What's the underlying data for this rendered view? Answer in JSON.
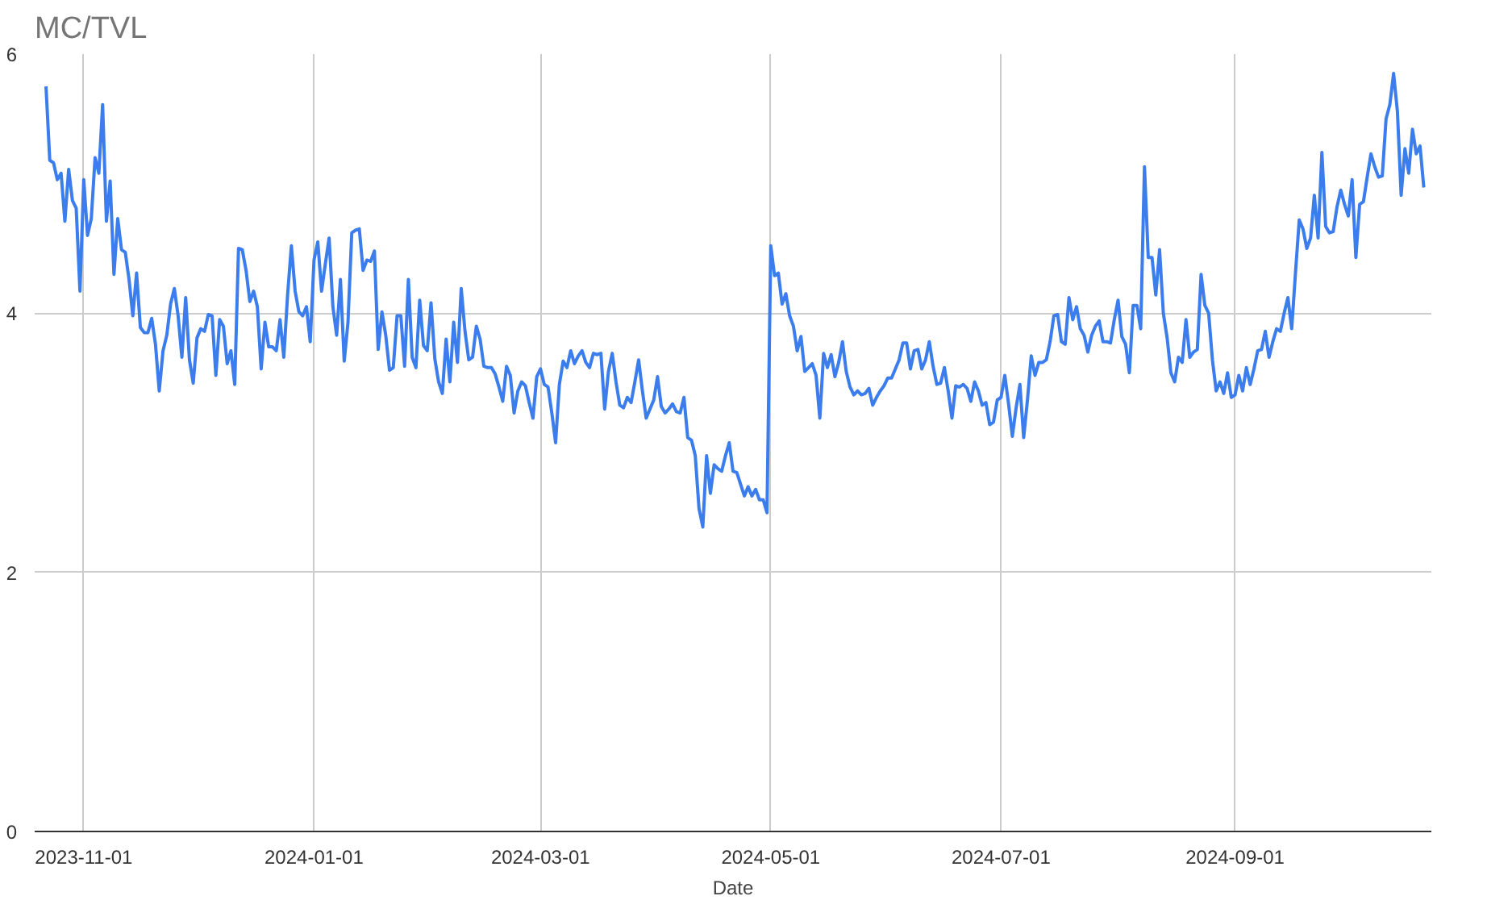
{
  "chart_data": {
    "type": "line",
    "title": "MC/TVL",
    "xlabel": "Date",
    "xlim": [
      "2023-10-19",
      "2024-10-23"
    ],
    "ylim": [
      0,
      6
    ],
    "xticks": [
      "2023-11-01",
      "2024-01-01",
      "2024-03-01",
      "2024-05-01",
      "2024-07-01",
      "2024-09-01"
    ],
    "yticks": [
      0,
      2,
      4,
      6
    ],
    "grid": true,
    "x": [
      "2023-10-22",
      "2023-10-23",
      "2023-10-24",
      "2023-10-25",
      "2023-10-26",
      "2023-10-27",
      "2023-10-28",
      "2023-10-29",
      "2023-10-30",
      "2023-10-31",
      "2023-11-01",
      "2023-11-02",
      "2023-11-03",
      "2023-11-04",
      "2023-11-05",
      "2023-11-06",
      "2023-11-07",
      "2023-11-08",
      "2023-11-09",
      "2023-11-10",
      "2023-11-11",
      "2023-11-12",
      "2023-11-13",
      "2023-11-14",
      "2023-11-15",
      "2023-11-16",
      "2023-11-17",
      "2023-11-18",
      "2023-11-19",
      "2023-11-20",
      "2023-11-21",
      "2023-11-22",
      "2023-11-23",
      "2023-11-24",
      "2023-11-25",
      "2023-11-26",
      "2023-11-27",
      "2023-11-28",
      "2023-11-29",
      "2023-11-30",
      "2023-12-01",
      "2023-12-02",
      "2023-12-03",
      "2023-12-04",
      "2023-12-05",
      "2023-12-06",
      "2023-12-07",
      "2023-12-08",
      "2023-12-09",
      "2023-12-10",
      "2023-12-11",
      "2023-12-12",
      "2023-12-13",
      "2023-12-14",
      "2023-12-15",
      "2023-12-16",
      "2023-12-17",
      "2023-12-18",
      "2023-12-19",
      "2023-12-20",
      "2023-12-21",
      "2023-12-22",
      "2023-12-23",
      "2023-12-24",
      "2023-12-25",
      "2023-12-26",
      "2023-12-27",
      "2023-12-28",
      "2023-12-29",
      "2023-12-30",
      "2023-12-31",
      "2024-01-01",
      "2024-01-02",
      "2024-01-03",
      "2024-01-04",
      "2024-01-05",
      "2024-01-06",
      "2024-01-07",
      "2024-01-08",
      "2024-01-09",
      "2024-01-10",
      "2024-01-11",
      "2024-01-12",
      "2024-01-13",
      "2024-01-14",
      "2024-01-15",
      "2024-01-16",
      "2024-01-17",
      "2024-01-18",
      "2024-01-19",
      "2024-01-20",
      "2024-01-21",
      "2024-01-22",
      "2024-01-23",
      "2024-01-24",
      "2024-01-25",
      "2024-01-26",
      "2024-01-27",
      "2024-01-28",
      "2024-01-29",
      "2024-01-30",
      "2024-01-31",
      "2024-02-01",
      "2024-02-02",
      "2024-02-03",
      "2024-02-04",
      "2024-02-05",
      "2024-02-06",
      "2024-02-07",
      "2024-02-08",
      "2024-02-09",
      "2024-02-10",
      "2024-02-11",
      "2024-02-12",
      "2024-02-13",
      "2024-02-14",
      "2024-02-15",
      "2024-02-16",
      "2024-02-17",
      "2024-02-18",
      "2024-02-19",
      "2024-02-20",
      "2024-02-21",
      "2024-02-22",
      "2024-02-23",
      "2024-02-24",
      "2024-02-25",
      "2024-02-26",
      "2024-02-27",
      "2024-02-28",
      "2024-02-29",
      "2024-03-01",
      "2024-03-02",
      "2024-03-03",
      "2024-03-04",
      "2024-03-05",
      "2024-03-06",
      "2024-03-07",
      "2024-03-08",
      "2024-03-09",
      "2024-03-10",
      "2024-03-11",
      "2024-03-12",
      "2024-03-13",
      "2024-03-14",
      "2024-03-15",
      "2024-03-16",
      "2024-03-17",
      "2024-03-18",
      "2024-03-19",
      "2024-03-20",
      "2024-03-21",
      "2024-03-22",
      "2024-03-23",
      "2024-03-24",
      "2024-03-25",
      "2024-03-26",
      "2024-03-27",
      "2024-03-28",
      "2024-03-29",
      "2024-03-30",
      "2024-03-31",
      "2024-04-01",
      "2024-04-02",
      "2024-04-03",
      "2024-04-04",
      "2024-04-05",
      "2024-04-06",
      "2024-04-07",
      "2024-04-08",
      "2024-04-09",
      "2024-04-10",
      "2024-04-11",
      "2024-04-12",
      "2024-04-13",
      "2024-04-14",
      "2024-04-15",
      "2024-04-16",
      "2024-04-17",
      "2024-04-18",
      "2024-04-19",
      "2024-04-20",
      "2024-04-21",
      "2024-04-22",
      "2024-04-23",
      "2024-04-24",
      "2024-04-25",
      "2024-04-26",
      "2024-04-27",
      "2024-04-28",
      "2024-04-29",
      "2024-04-30",
      "2024-05-01",
      "2024-05-02",
      "2024-05-03",
      "2024-05-04",
      "2024-05-05",
      "2024-05-06",
      "2024-05-07",
      "2024-05-08",
      "2024-05-09",
      "2024-05-10",
      "2024-05-11",
      "2024-05-12",
      "2024-05-13",
      "2024-05-14",
      "2024-05-15",
      "2024-05-16",
      "2024-05-17",
      "2024-05-18",
      "2024-05-19",
      "2024-05-20",
      "2024-05-21",
      "2024-05-22",
      "2024-05-23",
      "2024-05-24",
      "2024-05-25",
      "2024-05-26",
      "2024-05-27",
      "2024-05-28",
      "2024-05-29",
      "2024-05-30",
      "2024-05-31",
      "2024-06-01",
      "2024-06-02",
      "2024-06-03",
      "2024-06-04",
      "2024-06-05",
      "2024-06-06",
      "2024-06-07",
      "2024-06-08",
      "2024-06-09",
      "2024-06-10",
      "2024-06-11",
      "2024-06-12",
      "2024-06-13",
      "2024-06-14",
      "2024-06-15",
      "2024-06-16",
      "2024-06-17",
      "2024-06-18",
      "2024-06-19",
      "2024-06-20",
      "2024-06-21",
      "2024-06-22",
      "2024-06-23",
      "2024-06-24",
      "2024-06-25",
      "2024-06-26",
      "2024-06-27",
      "2024-06-28",
      "2024-06-29",
      "2024-06-30",
      "2024-07-01",
      "2024-07-02",
      "2024-07-03",
      "2024-07-04",
      "2024-07-05",
      "2024-07-06",
      "2024-07-07",
      "2024-07-08",
      "2024-07-09",
      "2024-07-10",
      "2024-07-11",
      "2024-07-12",
      "2024-07-13",
      "2024-07-14",
      "2024-07-15",
      "2024-07-16",
      "2024-07-17",
      "2024-07-18",
      "2024-07-19",
      "2024-07-20",
      "2024-07-21",
      "2024-07-22",
      "2024-07-23",
      "2024-07-24",
      "2024-07-25",
      "2024-07-26",
      "2024-07-27",
      "2024-07-28",
      "2024-07-29",
      "2024-07-30",
      "2024-07-31",
      "2024-08-01",
      "2024-08-02",
      "2024-08-03",
      "2024-08-04",
      "2024-08-05",
      "2024-08-06",
      "2024-08-07",
      "2024-08-08",
      "2024-08-09",
      "2024-08-10",
      "2024-08-11",
      "2024-08-12",
      "2024-08-13",
      "2024-08-14",
      "2024-08-15",
      "2024-08-16",
      "2024-08-17",
      "2024-08-18",
      "2024-08-19",
      "2024-08-20",
      "2024-08-21",
      "2024-08-22",
      "2024-08-23",
      "2024-08-24",
      "2024-08-25",
      "2024-08-26",
      "2024-08-27",
      "2024-08-28",
      "2024-08-29",
      "2024-08-30",
      "2024-08-31",
      "2024-09-01",
      "2024-09-02",
      "2024-09-03",
      "2024-09-04",
      "2024-09-05",
      "2024-09-06",
      "2024-09-07",
      "2024-09-08",
      "2024-09-09",
      "2024-09-10",
      "2024-09-11",
      "2024-09-12",
      "2024-09-13",
      "2024-09-14",
      "2024-09-15",
      "2024-09-16",
      "2024-09-17",
      "2024-09-18",
      "2024-09-19",
      "2024-09-20",
      "2024-09-21",
      "2024-09-22",
      "2024-09-23",
      "2024-09-24",
      "2024-09-25",
      "2024-09-26",
      "2024-09-27",
      "2024-09-28",
      "2024-09-29",
      "2024-09-30",
      "2024-10-01",
      "2024-10-02",
      "2024-10-03",
      "2024-10-04",
      "2024-10-05",
      "2024-10-06",
      "2024-10-07",
      "2024-10-08",
      "2024-10-09",
      "2024-10-10",
      "2024-10-11",
      "2024-10-12",
      "2024-10-13",
      "2024-10-14",
      "2024-10-15",
      "2024-10-16",
      "2024-10-17",
      "2024-10-18",
      "2024-10-19",
      "2024-10-20",
      "2024-10-21"
    ],
    "series": [
      {
        "color": "#3b7ded",
        "values": [
          5.75,
          5.18,
          5.16,
          5.03,
          5.08,
          4.71,
          5.11,
          4.87,
          4.81,
          4.17,
          5.03,
          4.6,
          4.73,
          5.2,
          5.08,
          5.61,
          4.71,
          5.02,
          4.3,
          4.73,
          4.49,
          4.47,
          4.26,
          3.98,
          4.31,
          3.89,
          3.85,
          3.85,
          3.96,
          3.76,
          3.4,
          3.71,
          3.83,
          4.07,
          4.19,
          3.98,
          3.66,
          4.12,
          3.64,
          3.46,
          3.81,
          3.88,
          3.86,
          3.99,
          3.98,
          3.52,
          3.95,
          3.9,
          3.61,
          3.71,
          3.45,
          4.5,
          4.49,
          4.33,
          4.09,
          4.17,
          4.05,
          3.57,
          3.93,
          3.74,
          3.74,
          3.71,
          3.95,
          3.66,
          4.14,
          4.52,
          4.17,
          4.01,
          3.98,
          4.05,
          3.78,
          4.41,
          4.55,
          4.17,
          4.38,
          4.58,
          4.05,
          3.83,
          4.26,
          3.63,
          3.93,
          4.62,
          4.64,
          4.65,
          4.33,
          4.41,
          4.4,
          4.48,
          3.72,
          4.01,
          3.83,
          3.56,
          3.58,
          3.98,
          3.98,
          3.59,
          4.26,
          3.66,
          3.58,
          4.1,
          3.75,
          3.71,
          4.08,
          3.65,
          3.47,
          3.38,
          3.8,
          3.47,
          3.93,
          3.62,
          4.19,
          3.86,
          3.64,
          3.66,
          3.9,
          3.8,
          3.59,
          3.58,
          3.58,
          3.53,
          3.43,
          3.32,
          3.59,
          3.52,
          3.23,
          3.4,
          3.47,
          3.44,
          3.31,
          3.19,
          3.51,
          3.57,
          3.45,
          3.43,
          3.23,
          3.0,
          3.45,
          3.63,
          3.58,
          3.71,
          3.61,
          3.67,
          3.71,
          3.62,
          3.58,
          3.69,
          3.68,
          3.69,
          3.26,
          3.55,
          3.69,
          3.47,
          3.29,
          3.27,
          3.35,
          3.31,
          3.47,
          3.64,
          3.4,
          3.19,
          3.26,
          3.33,
          3.51,
          3.28,
          3.23,
          3.26,
          3.3,
          3.24,
          3.23,
          3.35,
          3.04,
          3.02,
          2.9,
          2.49,
          2.35,
          2.9,
          2.61,
          2.83,
          2.8,
          2.78,
          2.9,
          3.0,
          2.78,
          2.77,
          2.68,
          2.59,
          2.66,
          2.59,
          2.64,
          2.56,
          2.56,
          2.46,
          4.52,
          4.29,
          4.31,
          4.07,
          4.15,
          3.98,
          3.9,
          3.71,
          3.82,
          3.55,
          3.58,
          3.61,
          3.52,
          3.19,
          3.69,
          3.58,
          3.68,
          3.51,
          3.62,
          3.78,
          3.55,
          3.43,
          3.37,
          3.4,
          3.37,
          3.38,
          3.42,
          3.29,
          3.35,
          3.4,
          3.44,
          3.5,
          3.5,
          3.57,
          3.64,
          3.77,
          3.77,
          3.57,
          3.71,
          3.72,
          3.57,
          3.64,
          3.78,
          3.59,
          3.45,
          3.46,
          3.58,
          3.4,
          3.19,
          3.44,
          3.43,
          3.45,
          3.42,
          3.32,
          3.47,
          3.4,
          3.29,
          3.31,
          3.14,
          3.16,
          3.33,
          3.35,
          3.52,
          3.3,
          3.05,
          3.27,
          3.45,
          3.04,
          3.33,
          3.67,
          3.52,
          3.62,
          3.62,
          3.64,
          3.78,
          3.98,
          3.99,
          3.78,
          3.76,
          4.12,
          3.95,
          4.05,
          3.88,
          3.83,
          3.7,
          3.83,
          3.9,
          3.94,
          3.78,
          3.78,
          3.77,
          3.95,
          4.1,
          3.82,
          3.76,
          3.54,
          4.06,
          4.06,
          3.88,
          5.13,
          4.43,
          4.43,
          4.14,
          4.49,
          4.0,
          3.81,
          3.54,
          3.47,
          3.66,
          3.62,
          3.95,
          3.66,
          3.7,
          3.72,
          4.3,
          4.06,
          4.0,
          3.64,
          3.4,
          3.47,
          3.38,
          3.54,
          3.35,
          3.37,
          3.52,
          3.4,
          3.58,
          3.45,
          3.57,
          3.71,
          3.72,
          3.86,
          3.66,
          3.78,
          3.88,
          3.86,
          4.0,
          4.12,
          3.88,
          4.31,
          4.72,
          4.65,
          4.5,
          4.58,
          4.91,
          4.58,
          5.24,
          4.67,
          4.62,
          4.63,
          4.82,
          4.95,
          4.84,
          4.75,
          5.03,
          4.43,
          4.84,
          4.86,
          5.05,
          5.23,
          5.13,
          5.05,
          5.06,
          5.5,
          5.61,
          5.85,
          5.56,
          4.91,
          5.27,
          5.08,
          5.42,
          5.23,
          5.29,
          4.97
        ]
      }
    ]
  }
}
